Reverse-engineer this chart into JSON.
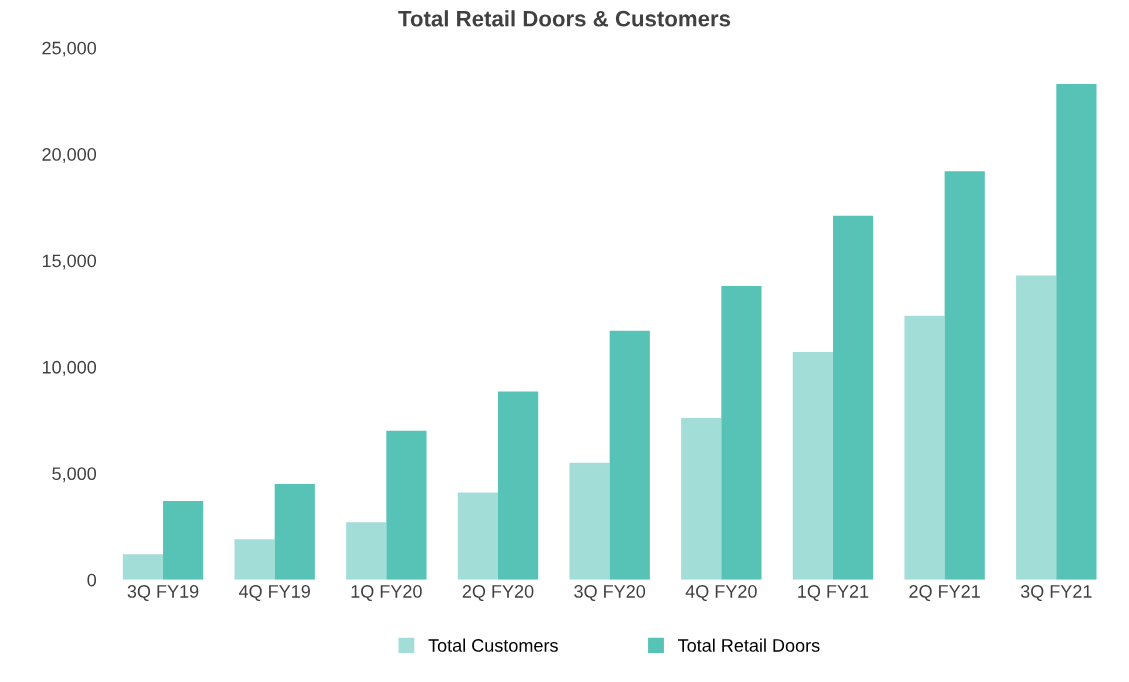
{
  "chart_data": {
    "type": "bar",
    "title": "Total Retail Doors & Customers",
    "categories": [
      "3Q FY19",
      "4Q FY19",
      "1Q FY20",
      "2Q FY20",
      "3Q FY20",
      "4Q FY20",
      "1Q FY21",
      "2Q FY21",
      "3Q FY21"
    ],
    "series": [
      {
        "name": "Total Customers",
        "color": "#a3ddd8",
        "values": [
          1200,
          1900,
          2700,
          4100,
          5500,
          7600,
          10700,
          12400,
          14300
        ]
      },
      {
        "name": "Total Retail Doors",
        "color": "#57c3b6",
        "values": [
          3700,
          4500,
          7000,
          8850,
          11700,
          13800,
          17100,
          19200,
          23300
        ]
      }
    ],
    "ylim": [
      0,
      25000
    ],
    "yticks": [
      {
        "value": 0,
        "label": "0"
      },
      {
        "value": 5000,
        "label": "5,000"
      },
      {
        "value": 10000,
        "label": "10,000"
      },
      {
        "value": 15000,
        "label": "15,000"
      },
      {
        "value": 20000,
        "label": "20,000"
      },
      {
        "value": 25000,
        "label": "25,000"
      }
    ],
    "grid": false,
    "legend": "bottom"
  }
}
